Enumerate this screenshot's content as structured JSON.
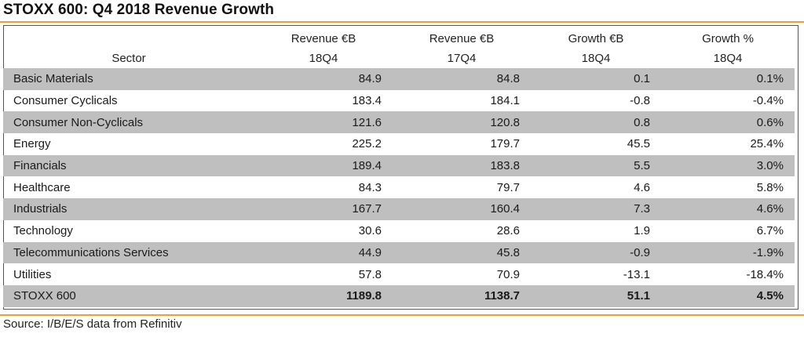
{
  "title": "STOXX 600: Q4 2018 Revenue Growth",
  "source": "Source: I/B/E/S data from Refinitiv",
  "colors": {
    "accent_rule": "#f0a030",
    "row_shade": "#bfbfbf",
    "frame": "#555555"
  },
  "header": {
    "row1": [
      "",
      "Revenue €B",
      "Revenue €B",
      "Growth €B",
      "Growth %"
    ],
    "row2": [
      "Sector",
      "18Q4",
      "17Q4",
      "18Q4",
      "18Q4"
    ]
  },
  "chart_data": {
    "type": "table",
    "title": "STOXX 600: Q4 2018 Revenue Growth",
    "columns": [
      "Sector",
      "Revenue €B 18Q4",
      "Revenue €B 17Q4",
      "Growth €B 18Q4",
      "Growth % 18Q4"
    ],
    "rows": [
      {
        "sector": "Basic Materials",
        "rev_18q4": "84.9",
        "rev_17q4": "84.8",
        "growth_eur": "0.1",
        "growth_pct": "0.1%",
        "shaded": true
      },
      {
        "sector": "Consumer Cyclicals",
        "rev_18q4": "183.4",
        "rev_17q4": "184.1",
        "growth_eur": "-0.8",
        "growth_pct": "-0.4%",
        "shaded": false
      },
      {
        "sector": "Consumer Non-Cyclicals",
        "rev_18q4": "121.6",
        "rev_17q4": "120.8",
        "growth_eur": "0.8",
        "growth_pct": "0.6%",
        "shaded": true
      },
      {
        "sector": "Energy",
        "rev_18q4": "225.2",
        "rev_17q4": "179.7",
        "growth_eur": "45.5",
        "growth_pct": "25.4%",
        "shaded": false
      },
      {
        "sector": "Financials",
        "rev_18q4": "189.4",
        "rev_17q4": "183.8",
        "growth_eur": "5.5",
        "growth_pct": "3.0%",
        "shaded": true
      },
      {
        "sector": "Healthcare",
        "rev_18q4": "84.3",
        "rev_17q4": "79.7",
        "growth_eur": "4.6",
        "growth_pct": "5.8%",
        "shaded": false
      },
      {
        "sector": "Industrials",
        "rev_18q4": "167.7",
        "rev_17q4": "160.4",
        "growth_eur": "7.3",
        "growth_pct": "4.6%",
        "shaded": true
      },
      {
        "sector": "Technology",
        "rev_18q4": "30.6",
        "rev_17q4": "28.6",
        "growth_eur": "1.9",
        "growth_pct": "6.7%",
        "shaded": false
      },
      {
        "sector": "Telecommunications Services",
        "rev_18q4": "44.9",
        "rev_17q4": "45.8",
        "growth_eur": "-0.9",
        "growth_pct": "-1.9%",
        "shaded": true
      },
      {
        "sector": "Utilities",
        "rev_18q4": "57.8",
        "rev_17q4": "70.9",
        "growth_eur": "-13.1",
        "growth_pct": "-18.4%",
        "shaded": false
      }
    ],
    "total": {
      "sector": "STOXX 600",
      "rev_18q4": "1189.8",
      "rev_17q4": "1138.7",
      "growth_eur": "51.1",
      "growth_pct": "4.5%"
    }
  }
}
